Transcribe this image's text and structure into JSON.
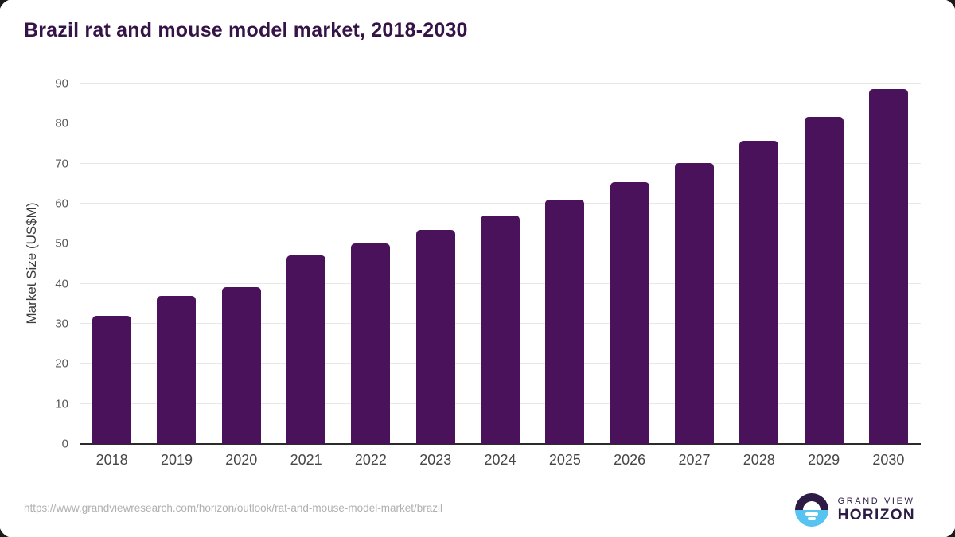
{
  "chart_data": {
    "type": "bar",
    "title": "Brazil rat and mouse model market, 2018-2030",
    "xlabel": "",
    "ylabel": "Market Size (US$M)",
    "categories": [
      "2018",
      "2019",
      "2020",
      "2021",
      "2022",
      "2023",
      "2024",
      "2025",
      "2026",
      "2027",
      "2028",
      "2029",
      "2030"
    ],
    "values": [
      32.0,
      37.0,
      39.2,
      47.1,
      50.0,
      53.4,
      57.0,
      61.0,
      65.4,
      70.2,
      75.7,
      81.7,
      88.7
    ],
    "ylim": [
      0,
      90
    ],
    "yticks": [
      0,
      10,
      20,
      30,
      40,
      50,
      60,
      70,
      80,
      90
    ],
    "grid": true,
    "legend": false
  },
  "colors": {
    "bar": "#4a125a",
    "title": "#351347",
    "gridline": "#e8e8e8",
    "axis_line": "#2b2b2b",
    "logo_purple": "#2d1a45",
    "logo_blue": "#56c3f1"
  },
  "footer": {
    "source_url": "https://www.grandviewresearch.com/horizon/outlook/rat-and-mouse-model-market/brazil",
    "logo": {
      "top": "GRAND VIEW",
      "bottom": "HORIZON"
    }
  }
}
